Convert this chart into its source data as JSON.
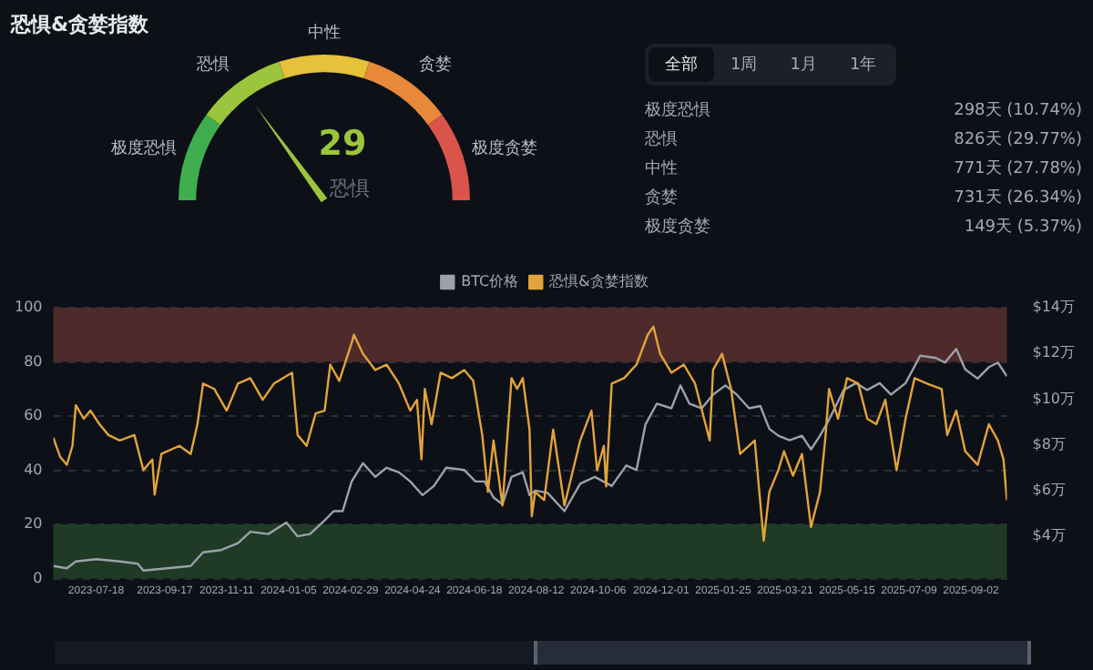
{
  "chart_data": [
    {
      "type": "donut",
      "title": "恐惧&贪婪指数",
      "categories": [
        "极度恐惧",
        "恐惧",
        "中性",
        "贪婪",
        "极度贪婪"
      ],
      "values": [
        20,
        20,
        20,
        20,
        20
      ],
      "colors": [
        "#3fae4f",
        "#9bc53d",
        "#e6c13a",
        "#e8893a",
        "#d9544a"
      ],
      "needle": "恐惧",
      "annotations": [
        "29",
        "恐惧"
      ]
    },
    {
      "type": "other",
      "annotations": [
        "全部",
        "1周",
        "1月",
        "1年",
        "极度恐惧",
        "298天 (10.74%)",
        "恐惧",
        "826天 (29.77%)",
        "中性",
        "771天 (27.78%)",
        "贪婪",
        "731天 (26.34%)",
        "极度贪婪",
        "149天 (5.37%)"
      ]
    },
    {
      "type": "line",
      "legend": "top",
      "grid": "y",
      "xlim": [
        "2023-06-10",
        "2025-10-04"
      ],
      "xticks": [
        "2023-07-18",
        "2023-09-17",
        "2023-11-11",
        "2024-01-05",
        "2024-02-29",
        "2024-04-24",
        "2024-06-18",
        "2024-08-12",
        "2024-10-06",
        "2024-12-01",
        "2025-01-25",
        "2025-03-21",
        "2025-05-15",
        "2025-07-09",
        "2025-09-02"
      ],
      "ylim": [
        0,
        100
      ],
      "yticks": [
        0,
        20,
        40,
        60,
        80,
        100
      ],
      "y2lim": [
        2.15,
        14
      ],
      "y2ticks": [
        {
          "value": 4,
          "label": "$4万"
        },
        {
          "value": 6,
          "label": "$6万"
        },
        {
          "value": 8,
          "label": "$8万"
        },
        {
          "value": 10,
          "label": "$10万"
        },
        {
          "value": 12,
          "label": "$12万"
        },
        {
          "value": 14,
          "label": "$14万"
        }
      ],
      "bands": [
        {
          "axis": "y",
          "from": 80,
          "to": 100,
          "color": "#4e2a2b"
        },
        {
          "axis": "y",
          "from": 0,
          "to": 20,
          "color": "#1f3b26"
        }
      ],
      "series": [
        {
          "name": "BTC价格",
          "color": "#9ba1aa",
          "axis": "y2",
          "x": [
            "2023-06-10",
            "2023-06-22",
            "2023-06-30",
            "2023-07-18",
            "2023-08-08",
            "2023-08-24",
            "2023-08-29",
            "2023-09-19",
            "2023-10-10",
            "2023-10-21",
            "2023-11-06",
            "2023-11-21",
            "2023-12-02",
            "2023-12-18",
            "2024-01-03",
            "2024-01-13",
            "2024-01-24",
            "2024-02-06",
            "2024-02-14",
            "2024-02-22",
            "2024-03-01",
            "2024-03-11",
            "2024-03-22",
            "2024-04-01",
            "2024-04-12",
            "2024-04-22",
            "2024-05-03",
            "2024-05-13",
            "2024-05-24",
            "2024-06-09",
            "2024-06-19",
            "2024-06-27",
            "2024-07-05",
            "2024-07-13",
            "2024-07-21",
            "2024-07-31",
            "2024-08-06",
            "2024-08-11",
            "2024-08-22",
            "2024-09-06",
            "2024-09-20",
            "2024-10-03",
            "2024-10-18",
            "2024-10-31",
            "2024-11-09",
            "2024-11-17",
            "2024-11-27",
            "2024-12-10",
            "2024-12-18",
            "2024-12-26",
            "2025-01-06",
            "2025-01-16",
            "2025-01-27",
            "2025-02-06",
            "2025-02-17",
            "2025-02-27",
            "2025-03-07",
            "2025-03-15",
            "2025-03-25",
            "2025-04-05",
            "2025-04-13",
            "2025-04-21",
            "2025-04-29",
            "2025-05-12",
            "2025-05-23",
            "2025-06-02",
            "2025-06-13",
            "2025-06-23",
            "2025-07-06",
            "2025-07-19",
            "2025-08-02",
            "2025-08-10",
            "2025-08-20",
            "2025-08-28",
            "2025-09-08",
            "2025-09-18",
            "2025-09-26",
            "2025-10-04"
          ],
          "values": [
            2.7,
            2.6,
            2.9,
            3.0,
            2.9,
            2.8,
            2.5,
            2.6,
            2.7,
            3.3,
            3.4,
            3.7,
            4.2,
            4.1,
            4.6,
            4.0,
            4.1,
            4.7,
            5.1,
            5.1,
            6.4,
            7.2,
            6.6,
            7.0,
            6.8,
            6.4,
            5.8,
            6.2,
            7.0,
            6.9,
            6.4,
            6.4,
            5.7,
            5.4,
            6.6,
            6.8,
            5.8,
            6.0,
            5.9,
            5.1,
            6.3,
            6.6,
            6.2,
            7.1,
            6.9,
            8.9,
            9.8,
            9.6,
            10.6,
            9.8,
            9.6,
            10.2,
            10.6,
            10.2,
            9.6,
            9.7,
            8.7,
            8.4,
            8.2,
            8.4,
            7.8,
            8.4,
            9.1,
            10.4,
            10.7,
            10.4,
            10.7,
            10.2,
            10.7,
            11.9,
            11.8,
            11.6,
            12.2,
            11.3,
            10.9,
            11.4,
            11.6,
            11.0
          ]
        },
        {
          "name": "恐惧&贪婪指数",
          "color": "#e3a33b",
          "x": [
            "2023-06-10",
            "2023-06-16",
            "2023-06-22",
            "2023-06-27",
            "2023-06-30",
            "2023-07-07",
            "2023-07-13",
            "2023-07-21",
            "2023-07-29",
            "2023-08-08",
            "2023-08-21",
            "2023-08-29",
            "2023-09-06",
            "2023-09-08",
            "2023-09-14",
            "2023-09-30",
            "2023-10-10",
            "2023-10-16",
            "2023-10-21",
            "2023-10-31",
            "2023-11-11",
            "2023-11-21",
            "2023-12-02",
            "2023-12-13",
            "2023-12-23",
            "2024-01-08",
            "2024-01-13",
            "2024-01-21",
            "2024-01-29",
            "2024-02-06",
            "2024-02-11",
            "2024-02-19",
            "2024-03-01",
            "2024-03-03",
            "2024-03-11",
            "2024-03-22",
            "2024-04-01",
            "2024-04-12",
            "2024-04-22",
            "2024-04-28",
            "2024-05-02",
            "2024-05-05",
            "2024-05-11",
            "2024-05-19",
            "2024-05-29",
            "2024-06-09",
            "2024-06-17",
            "2024-06-25",
            "2024-06-30",
            "2024-07-05",
            "2024-07-13",
            "2024-07-21",
            "2024-07-26",
            "2024-07-31",
            "2024-08-06",
            "2024-08-08",
            "2024-08-11",
            "2024-08-19",
            "2024-08-27",
            "2024-09-06",
            "2024-09-20",
            "2024-09-30",
            "2024-10-05",
            "2024-10-11",
            "2024-10-13",
            "2024-10-18",
            "2024-10-29",
            "2024-11-09",
            "2024-11-19",
            "2024-11-24",
            "2024-11-30",
            "2024-12-10",
            "2024-12-21",
            "2024-12-31",
            "2025-01-13",
            "2025-01-16",
            "2025-01-24",
            "2025-02-01",
            "2025-02-09",
            "2025-02-22",
            "2025-03-02",
            "2025-03-07",
            "2025-03-15",
            "2025-03-20",
            "2025-03-28",
            "2025-04-05",
            "2025-04-13",
            "2025-04-21",
            "2025-04-26",
            "2025-04-29",
            "2025-05-07",
            "2025-05-15",
            "2025-05-25",
            "2025-06-02",
            "2025-06-10",
            "2025-06-18",
            "2025-06-28",
            "2025-07-06",
            "2025-07-14",
            "2025-07-25",
            "2025-08-07",
            "2025-08-12",
            "2025-08-20",
            "2025-08-28",
            "2025-09-08",
            "2025-09-18",
            "2025-09-26",
            "2025-10-01",
            "2025-10-04"
          ],
          "values": [
            52,
            45,
            42,
            49,
            64,
            59,
            62,
            57,
            53,
            51,
            53,
            40,
            44,
            31,
            46,
            49,
            46,
            57,
            72,
            70,
            62,
            72,
            74,
            66,
            72,
            76,
            53,
            49,
            61,
            62,
            79,
            73,
            87,
            90,
            83,
            77,
            79,
            72,
            62,
            66,
            44,
            70,
            57,
            76,
            74,
            77,
            73,
            53,
            32,
            51,
            27,
            74,
            70,
            74,
            55,
            23,
            32,
            29,
            55,
            27,
            51,
            62,
            40,
            49,
            34,
            72,
            74,
            79,
            90,
            93,
            83,
            76,
            79,
            72,
            51,
            77,
            83,
            70,
            46,
            51,
            14,
            32,
            40,
            47,
            38,
            46,
            19,
            32,
            53,
            70,
            59,
            74,
            72,
            59,
            57,
            66,
            40,
            59,
            74,
            72,
            70,
            53,
            62,
            47,
            42,
            57,
            51,
            44,
            29
          ]
        }
      ]
    }
  ]
}
